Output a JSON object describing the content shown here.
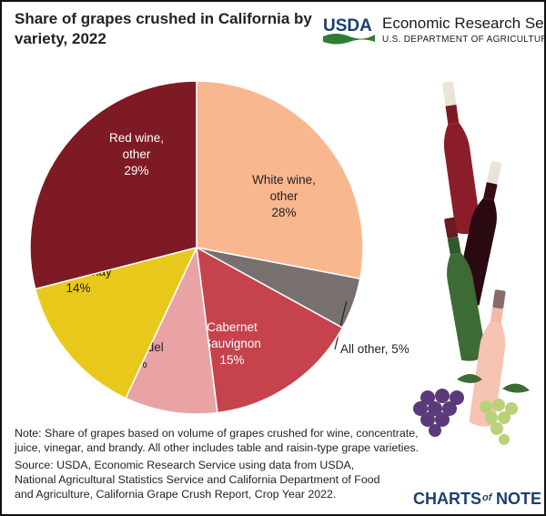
{
  "header": {
    "title": "Share of grapes crushed in California by variety, 2022",
    "agency_logo_text": "USDA",
    "agency_name": "Economic Research Service",
    "agency_dept": "U.S. DEPARTMENT OF AGRICULTURE"
  },
  "chart_data": {
    "type": "pie",
    "title": "Share of grapes crushed in California by variety, 2022",
    "unit": "%",
    "slices": [
      {
        "label_lines": [
          "White wine,",
          "other"
        ],
        "value": 28,
        "value_label": "28%",
        "color": "#f9b78f"
      },
      {
        "label_lines": [
          "All other, 5%"
        ],
        "value": 5,
        "value_label": "",
        "color": "#77706e"
      },
      {
        "label_lines": [
          "Cabernet",
          "Sauvignon"
        ],
        "value": 15,
        "value_label": "15%",
        "color": "#c6424d"
      },
      {
        "label_lines": [
          "Zinfandel"
        ],
        "value": 9,
        "value_label": "9%",
        "color": "#eaa3a5"
      },
      {
        "label_lines": [
          "Chardonnay"
        ],
        "value": 14,
        "value_label": "14%",
        "color": "#e9c81c"
      },
      {
        "label_lines": [
          "Red wine,",
          "other"
        ],
        "value": 29,
        "value_label": "29%",
        "color": "#7e1a23"
      }
    ]
  },
  "footer": {
    "note": "Note: Share of grapes based on volume of grapes crushed for wine, concentrate, juice, vinegar, and brandy. All other includes table and raisin-type grape varieties.",
    "source": "Source: USDA, Economic Research Service using data from USDA, National Agricultural Statistics Service and California Department of Food and Agriculture, California Grape Crush Report, Crop Year 2022.",
    "brand_charts": "CHARTS",
    "brand_of": "of",
    "brand_note": "NOTE"
  }
}
